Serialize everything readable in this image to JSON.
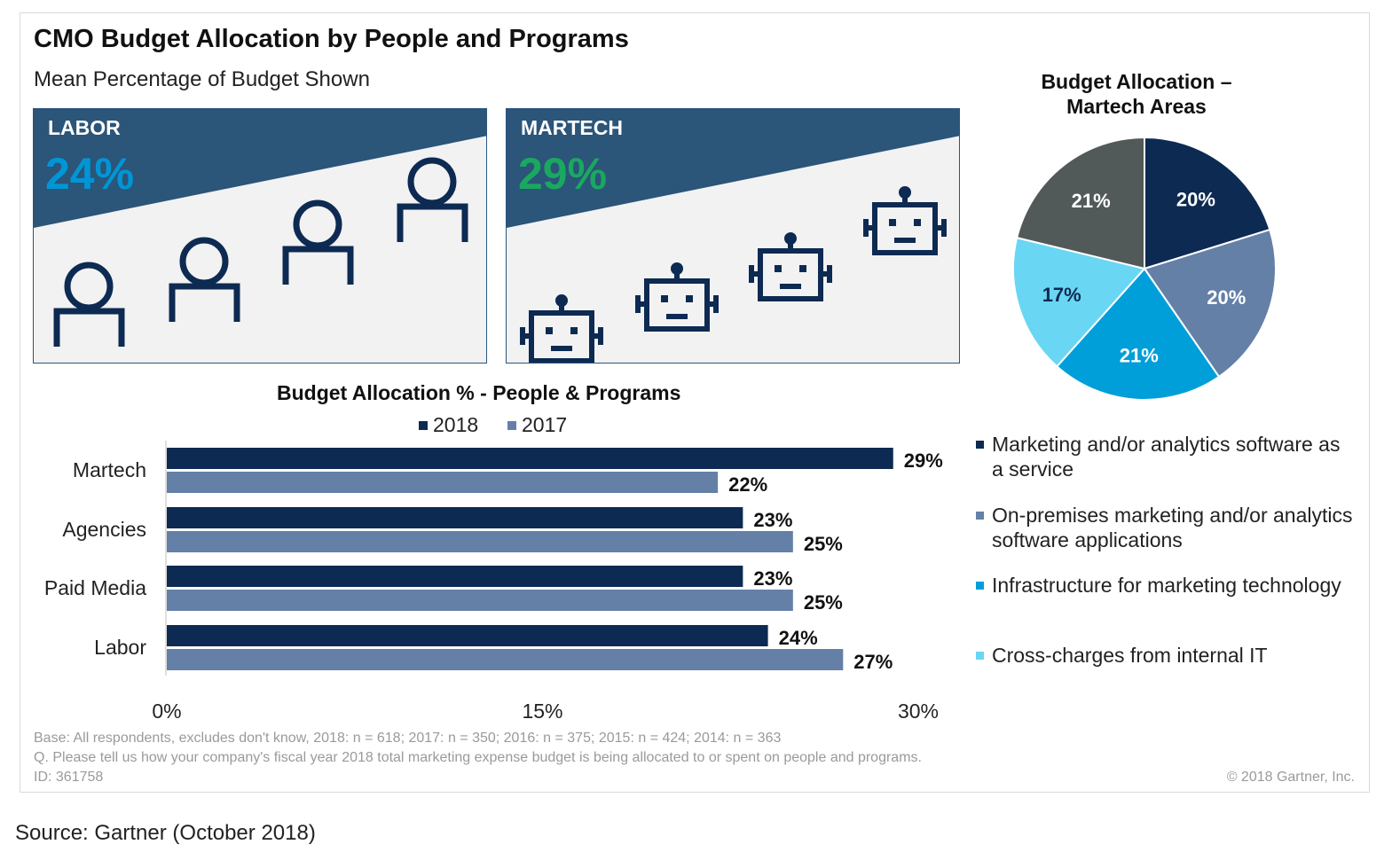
{
  "title": "CMO Budget Allocation by People and Programs",
  "subtitle": "Mean Percentage of Budget Shown",
  "panels": {
    "labor": {
      "label": "LABOR",
      "value": "24%",
      "value_color": "#0096d6"
    },
    "martech": {
      "label": "MARTECH",
      "value": "29%",
      "value_color": "#1aa860"
    }
  },
  "colors": {
    "dark_navy": "#0d2a52",
    "steel_blue": "#6480a7",
    "bright_blue": "#009fd9",
    "light_cyan": "#69d6f4",
    "gray": "#525a59",
    "panel_banner": "#2b5579"
  },
  "icons": {
    "labor": "person-icon",
    "martech": "robot-icon"
  },
  "chart_data": [
    {
      "type": "bar",
      "orientation": "horizontal",
      "title": "Budget Allocation % - People & Programs",
      "categories": [
        "Martech",
        "Agencies",
        "Paid Media",
        "Labor"
      ],
      "series": [
        {
          "name": "2018",
          "values": [
            29,
            23,
            23,
            24
          ],
          "labels": [
            "29%",
            "23%",
            "23%",
            "24%"
          ],
          "color": "#0d2a52"
        },
        {
          "name": "2017",
          "values": [
            22,
            25,
            25,
            27
          ],
          "labels": [
            "22%",
            "25%",
            "25%",
            "27%"
          ],
          "color": "#6480a7"
        }
      ],
      "xlim": [
        0,
        30
      ],
      "xticks": [
        "0%",
        "15%",
        "30%"
      ],
      "legend": "top",
      "grid": false
    },
    {
      "type": "pie",
      "title": "Budget Allocation – Martech Areas",
      "slices": [
        {
          "name": "Marketing and/or analytics software as a service",
          "value": 20,
          "label": "20%",
          "color": "#0d2a52"
        },
        {
          "name": "On-premises marketing and/or analytics software applications",
          "value": 20,
          "label": "20%",
          "color": "#6480a7"
        },
        {
          "name": "Infrastructure for marketing technology",
          "value": 21,
          "label": "21%",
          "color": "#009fd9"
        },
        {
          "name": "Cross-charges from internal IT",
          "value": 17,
          "label": "17%",
          "color": "#69d6f4"
        },
        {
          "name": "",
          "value": 21,
          "label": "21%",
          "color": "#525a59"
        }
      ],
      "legend": "bottom"
    }
  ],
  "pie_legend": [
    {
      "text": "Marketing and/or analytics software as a service",
      "color": "#0d2a52"
    },
    {
      "text": "On-premises marketing and/or analytics software applications",
      "color": "#6480a7"
    },
    {
      "text": "Infrastructure for marketing technology",
      "color": "#009fd9"
    },
    {
      "text": "Cross-charges from internal IT",
      "color": "#69d6f4"
    }
  ],
  "footnotes": {
    "base": "Base: All respondents, excludes don't know, 2018: n = 618; 2017: n = 350; 2016: n = 375; 2015: n =  424; 2014: n = 363",
    "question": "Q. Please tell us how your company's fiscal year 2018 total marketing expense budget is being allocated to or spent on people and programs.",
    "id": "ID: 361758",
    "copyright": "© 2018 Gartner, Inc."
  },
  "source": "Source: Gartner (October 2018)"
}
